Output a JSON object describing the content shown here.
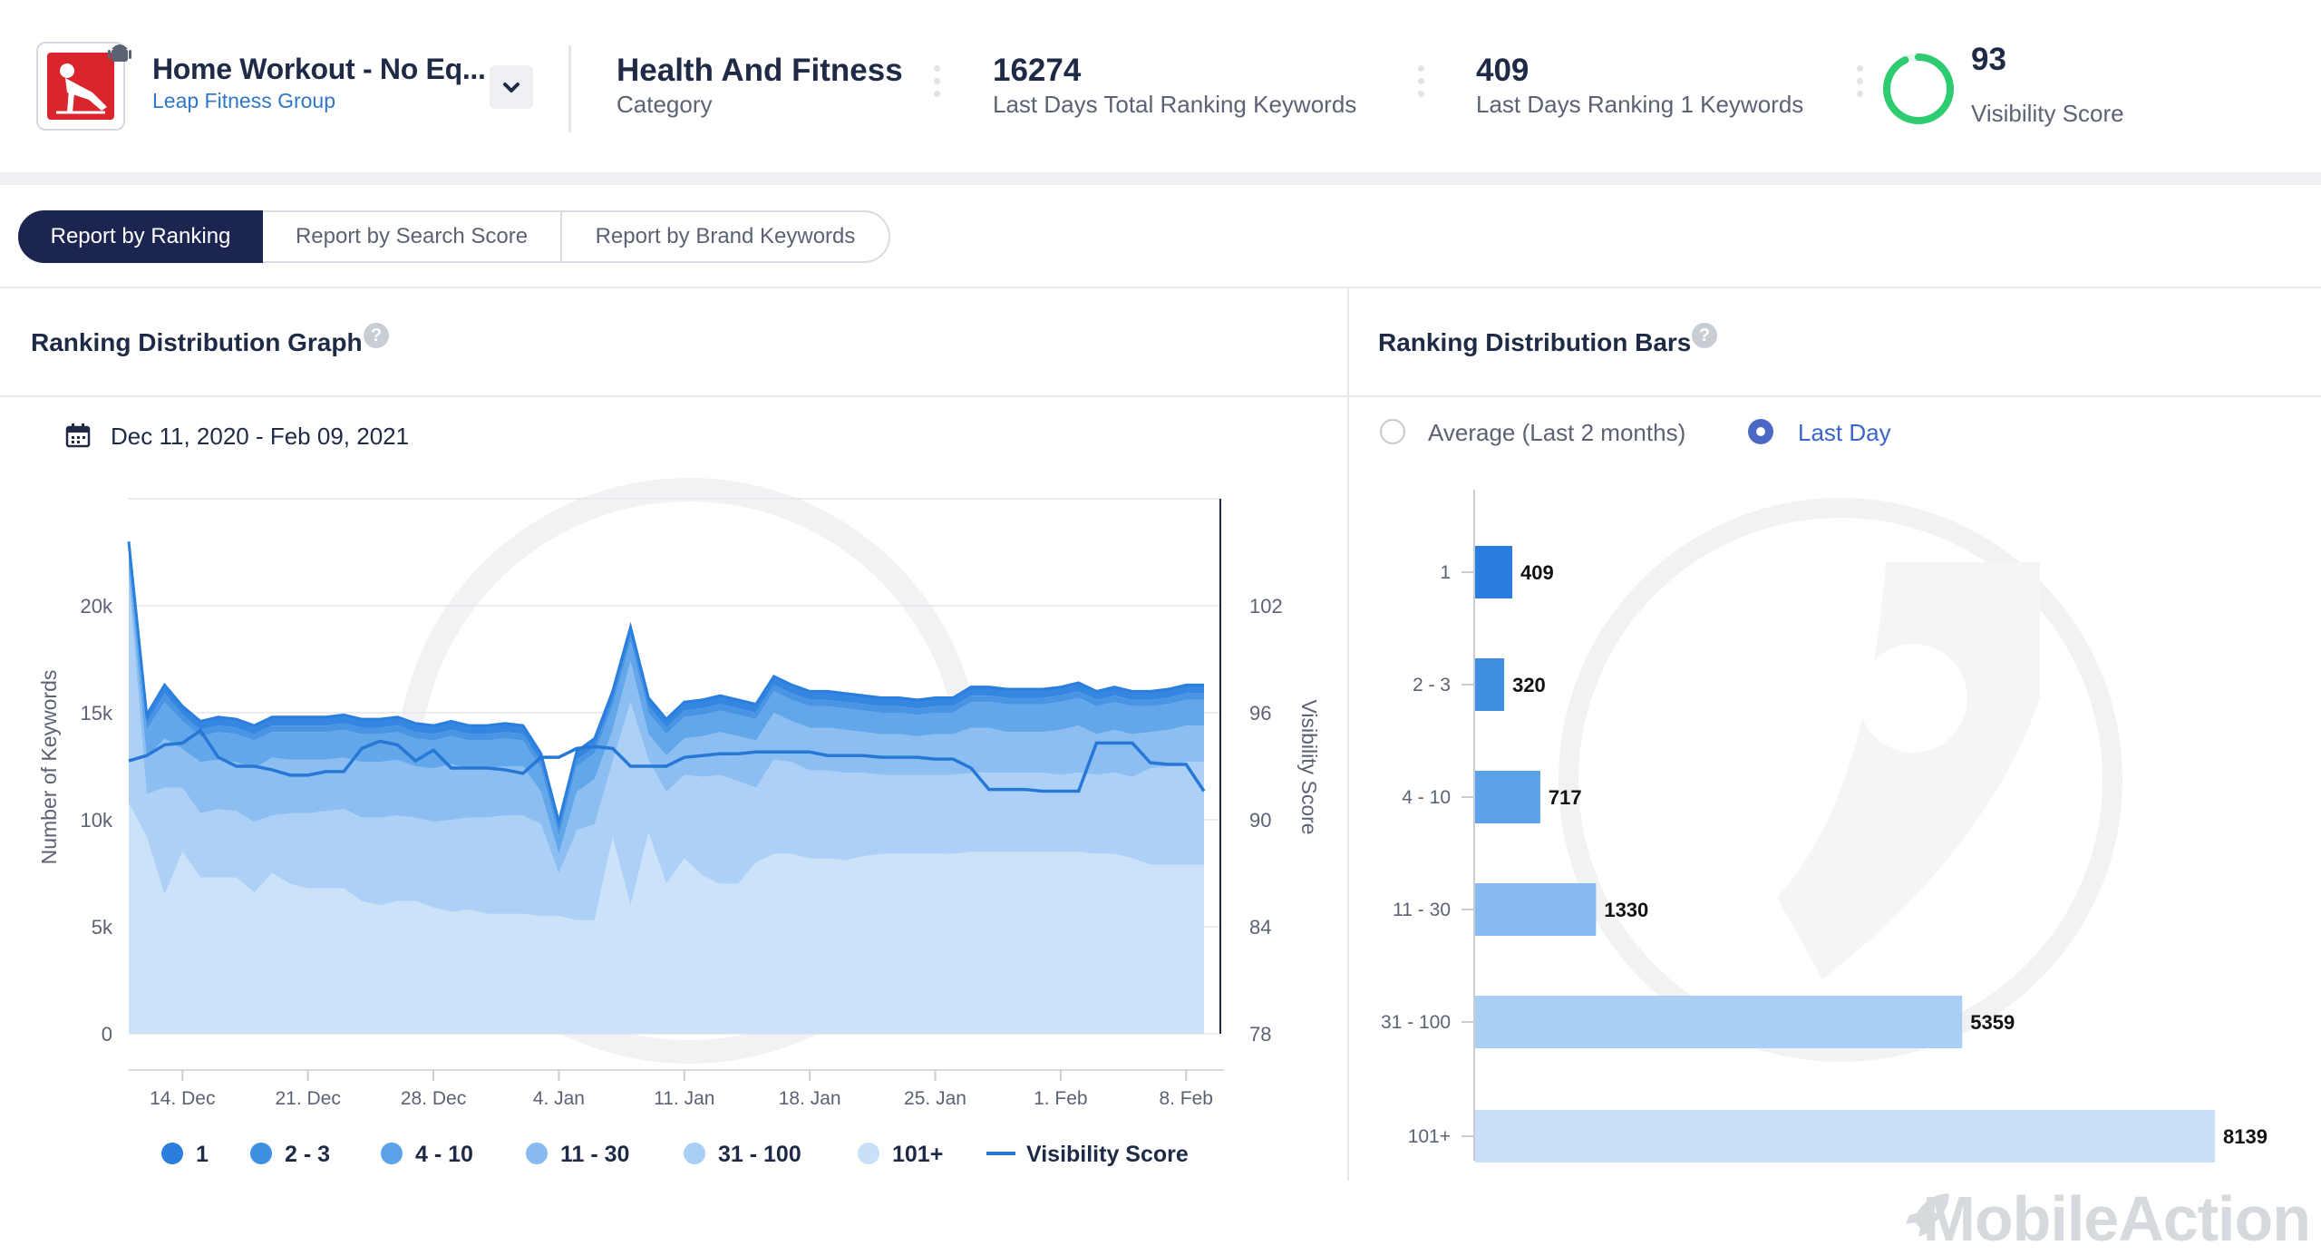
{
  "header": {
    "app_name": "Home Workout - No Eq...",
    "publisher": "Leap Fitness Group",
    "category": {
      "value": "Health And Fitness",
      "label": "Category"
    },
    "total_keywords": {
      "value": "16274",
      "label": "Last Days Total Ranking Keywords"
    },
    "rank1_keywords": {
      "value": "409",
      "label": "Last Days Ranking 1 Keywords"
    },
    "visibility": {
      "value": "93",
      "label": "Visibility Score"
    }
  },
  "tabs": [
    {
      "label": "Report by Ranking",
      "active": true
    },
    {
      "label": "Report by Search Score",
      "active": false
    },
    {
      "label": "Report by Brand Keywords",
      "active": false
    }
  ],
  "left_panel": {
    "title": "Ranking Distribution Graph",
    "help": "?",
    "date_range": "Dec 11, 2020 - Feb 09, 2021"
  },
  "right_panel": {
    "title": "Ranking Distribution Bars",
    "help": "?",
    "radio_avg": "Average (Last 2 months)",
    "radio_last": "Last Day",
    "selected": "Last Day"
  },
  "colors": {
    "s1": "#2a7fde",
    "s2": "#3f8fe3",
    "s3": "#5ba2ea",
    "s4": "#86baf0",
    "s5": "#a9cff5",
    "s6": "#c9e0f8",
    "visibility_line": "#2777d6",
    "navy": "#1b2550",
    "ring": "#2ecc71"
  },
  "chart_data": [
    {
      "type": "area",
      "stacked": true,
      "ylabel": "Number of Keywords",
      "y2label": "Visibility Score",
      "ylim": [
        0,
        25000
      ],
      "y2lim": [
        78,
        108
      ],
      "yticks": [
        "0",
        "5k",
        "10k",
        "15k",
        "20k"
      ],
      "y2ticks": [
        "78",
        "84",
        "90",
        "96",
        "102"
      ],
      "xtick_labels": [
        "14. Dec",
        "21. Dec",
        "28. Dec",
        "4. Jan",
        "11. Jan",
        "18. Jan",
        "25. Jan",
        "1. Feb",
        "8. Feb"
      ],
      "xtick_days": [
        3,
        10,
        17,
        24,
        31,
        38,
        45,
        52,
        59
      ],
      "days": 61,
      "series": [
        {
          "name": "101+",
          "values": [
            10800,
            9200,
            6500,
            8500,
            7300,
            7300,
            7300,
            6600,
            7500,
            7000,
            6800,
            6800,
            6800,
            6200,
            6000,
            6200,
            6200,
            5900,
            5700,
            5800,
            5600,
            5600,
            5600,
            5500,
            5500,
            5300,
            5300,
            9200,
            6000,
            9400,
            7000,
            8200,
            7400,
            7000,
            7000,
            8000,
            8400,
            8400,
            8200,
            8200,
            8100,
            8300,
            8400,
            8400,
            8400,
            8400,
            8400,
            8500,
            8500,
            8500,
            8500,
            8500,
            8500,
            8500,
            8400,
            8400,
            8200,
            7900,
            7900,
            7900,
            7900
          ]
        },
        {
          "name": "31 - 100",
          "values": [
            10500,
            2000,
            5000,
            3000,
            3000,
            3200,
            3100,
            3300,
            2700,
            3300,
            3500,
            3600,
            3700,
            3900,
            4100,
            4000,
            3900,
            4000,
            4300,
            4300,
            4500,
            4600,
            4600,
            4300,
            2000,
            4200,
            4500,
            3500,
            9500,
            3400,
            4300,
            3900,
            4600,
            5100,
            4800,
            3500,
            4400,
            4300,
            4100,
            4100,
            4100,
            3900,
            3700,
            3700,
            3700,
            3700,
            3700,
            3700,
            3700,
            3700,
            3700,
            3700,
            3600,
            3700,
            3700,
            3800,
            3800,
            4500,
            4600,
            4800,
            4800
          ]
        },
        {
          "name": "11 - 30",
          "values": [
            500,
            1700,
            2300,
            1800,
            2400,
            2300,
            2300,
            2500,
            2700,
            2500,
            2500,
            2400,
            2400,
            2600,
            2600,
            2600,
            2400,
            2500,
            2600,
            2300,
            2300,
            2300,
            2300,
            1500,
            900,
            1800,
            2100,
            1500,
            1900,
            1200,
            1700,
            1700,
            1900,
            2000,
            2100,
            2200,
            2200,
            1900,
            2000,
            2000,
            2000,
            1900,
            1900,
            1900,
            1800,
            1900,
            1900,
            2100,
            2100,
            1900,
            1900,
            1900,
            2100,
            2200,
            1900,
            2000,
            2000,
            1700,
            1700,
            1700,
            1700
          ]
        },
        {
          "name": "4 - 10",
          "values": [
            500,
            1300,
            1700,
            1300,
            1200,
            1300,
            1300,
            1300,
            1200,
            1300,
            1300,
            1300,
            1300,
            1300,
            1300,
            1300,
            1300,
            1300,
            1300,
            1300,
            1300,
            1300,
            1200,
            1100,
            800,
            1200,
            1200,
            1100,
            900,
            1000,
            1000,
            1000,
            1000,
            1000,
            1000,
            1000,
            1000,
            1000,
            1000,
            1000,
            1000,
            1000,
            1000,
            1000,
            1000,
            1000,
            1000,
            1200,
            1200,
            1300,
            1300,
            1300,
            1300,
            1300,
            1300,
            1300,
            1300,
            1200,
            1200,
            1200,
            1200
          ]
        },
        {
          "name": "2 - 3",
          "values": [
            300,
            300,
            400,
            300,
            300,
            300,
            300,
            300,
            300,
            300,
            300,
            300,
            300,
            300,
            300,
            300,
            300,
            300,
            300,
            300,
            300,
            300,
            300,
            300,
            300,
            300,
            300,
            300,
            300,
            300,
            300,
            300,
            300,
            300,
            300,
            300,
            300,
            300,
            300,
            300,
            300,
            300,
            300,
            300,
            300,
            300,
            300,
            300,
            300,
            300,
            300,
            300,
            300,
            300,
            300,
            300,
            300,
            300,
            300,
            300,
            300
          ]
        },
        {
          "name": "1",
          "values": [
            400,
            400,
            400,
            400,
            400,
            400,
            400,
            400,
            400,
            400,
            400,
            400,
            400,
            400,
            400,
            400,
            400,
            400,
            400,
            400,
            400,
            400,
            400,
            400,
            400,
            400,
            400,
            400,
            400,
            400,
            400,
            400,
            400,
            400,
            400,
            400,
            400,
            400,
            400,
            400,
            400,
            400,
            400,
            400,
            400,
            400,
            400,
            400,
            400,
            400,
            400,
            400,
            400,
            400,
            400,
            400,
            400,
            400,
            400,
            400,
            400
          ]
        },
        {
          "name": "Visibility Score",
          "axis": "right",
          "values": [
            93.3,
            93.6,
            94.2,
            94.3,
            95.0,
            93.5,
            93.0,
            93.0,
            92.8,
            92.5,
            92.5,
            92.7,
            92.7,
            94.0,
            94.4,
            94.2,
            93.3,
            93.9,
            92.9,
            92.9,
            92.9,
            92.8,
            92.6,
            93.5,
            93.5,
            94.0,
            94.1,
            94.0,
            93.0,
            93.0,
            93.0,
            93.5,
            93.6,
            93.7,
            93.7,
            93.8,
            93.8,
            93.8,
            93.8,
            93.6,
            93.6,
            93.6,
            93.5,
            93.5,
            93.5,
            93.4,
            93.4,
            92.9,
            91.7,
            91.7,
            91.7,
            91.6,
            91.6,
            91.6,
            94.3,
            94.3,
            94.3,
            93.2,
            93.1,
            93.1,
            91.6
          ]
        }
      ],
      "legend": [
        "1",
        "2 - 3",
        "4 - 10",
        "11 - 30",
        "31 - 100",
        "101+",
        "Visibility Score"
      ]
    },
    {
      "type": "bar",
      "orientation": "horizontal",
      "categories": [
        "1",
        "2 - 3",
        "4 - 10",
        "11 - 30",
        "31 - 100",
        "101+"
      ],
      "values": [
        409,
        320,
        717,
        1330,
        5359,
        8139
      ],
      "labels": [
        "409",
        "320",
        "717",
        "1330",
        "5359",
        "8139"
      ],
      "xlim": [
        0,
        8139
      ]
    }
  ],
  "brand": "MobileAction"
}
